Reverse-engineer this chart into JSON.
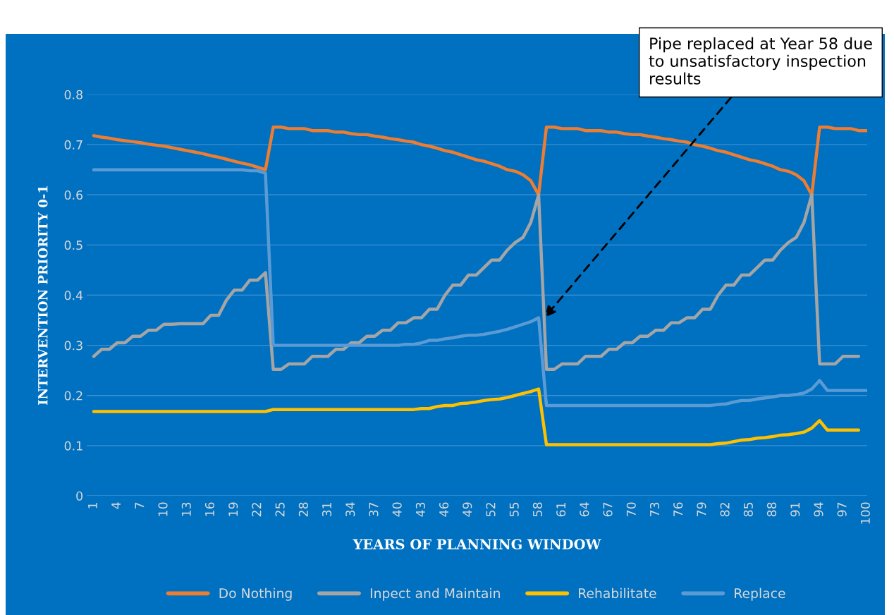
{
  "chart_data": {
    "type": "line",
    "xlabel": "YEARS OF PLANNING WINDOW",
    "ylabel": "INTERVENTION PRIORITY 0-1",
    "categories": [
      "1",
      null,
      null,
      "4",
      null,
      null,
      "7",
      null,
      null,
      "10",
      null,
      null,
      "13",
      null,
      null,
      "16",
      null,
      null,
      "19",
      null,
      null,
      "22",
      null,
      null,
      "25",
      null,
      null,
      "28",
      null,
      null,
      "31",
      null,
      null,
      "34",
      null,
      null,
      "37",
      null,
      null,
      "40",
      null,
      null,
      "43",
      null,
      null,
      "46",
      null,
      null,
      "49",
      null,
      null,
      "52",
      null,
      null,
      "55",
      null,
      null,
      "58",
      null,
      null,
      "61",
      null,
      null,
      "64",
      null,
      null,
      "67",
      null,
      null,
      "70",
      null,
      null,
      "73",
      null,
      null,
      "76",
      null,
      null,
      "79",
      null,
      null,
      "82",
      null,
      null,
      "85",
      null,
      null,
      "88",
      null,
      null,
      "91",
      null,
      null,
      "94",
      null,
      null,
      "97",
      null,
      null,
      "100"
    ],
    "series": [
      {
        "name": "Do Nothing",
        "color": "#ed7d31",
        "values": [
          0.718,
          0.715,
          0.713,
          0.71,
          0.708,
          0.706,
          0.704,
          0.701,
          0.699,
          0.697,
          0.694,
          0.691,
          0.688,
          0.685,
          0.682,
          0.678,
          0.675,
          0.671,
          0.667,
          0.663,
          0.66,
          0.655,
          0.65,
          0.735,
          0.735,
          0.732,
          0.732,
          0.732,
          0.728,
          0.728,
          0.728,
          0.725,
          0.725,
          0.722,
          0.72,
          0.72,
          0.717,
          0.715,
          0.712,
          0.71,
          0.707,
          0.705,
          0.7,
          0.697,
          0.693,
          0.688,
          0.685,
          0.68,
          0.675,
          0.67,
          0.667,
          0.662,
          0.657,
          0.65,
          0.647,
          0.64,
          0.628,
          0.6,
          0.735,
          0.735,
          0.732,
          0.732,
          0.732,
          0.728,
          0.728,
          0.728,
          0.725,
          0.725,
          0.722,
          0.72,
          0.72,
          0.717,
          0.715,
          0.712,
          0.71,
          0.707,
          0.705,
          0.7,
          0.697,
          0.693,
          0.688,
          0.685,
          0.68,
          0.675,
          0.67,
          0.667,
          0.662,
          0.657,
          0.65,
          0.647,
          0.64,
          0.628,
          0.6,
          0.735,
          0.735,
          0.732,
          0.732,
          0.732,
          0.728,
          0.728
        ]
      },
      {
        "name": "Inpect and Maintain",
        "color": "#a5a5a5",
        "values": [
          0.278,
          0.292,
          0.292,
          0.305,
          0.305,
          0.318,
          0.318,
          0.33,
          0.33,
          0.342,
          0.342,
          0.343,
          0.343,
          0.343,
          0.343,
          0.36,
          0.36,
          0.39,
          0.41,
          0.41,
          0.43,
          0.43,
          0.445,
          0.252,
          0.252,
          0.263,
          0.263,
          0.263,
          0.278,
          0.278,
          0.278,
          0.292,
          0.292,
          0.305,
          0.305,
          0.318,
          0.318,
          0.33,
          0.33,
          0.345,
          0.345,
          0.355,
          0.355,
          0.372,
          0.372,
          0.4,
          0.42,
          0.42,
          0.44,
          0.44,
          0.455,
          0.47,
          0.47,
          0.49,
          0.505,
          0.515,
          0.545,
          0.6,
          0.252,
          0.252,
          0.263,
          0.263,
          0.263,
          0.278,
          0.278,
          0.278,
          0.292,
          0.292,
          0.305,
          0.305,
          0.318,
          0.318,
          0.33,
          0.33,
          0.345,
          0.345,
          0.355,
          0.355,
          0.372,
          0.372,
          0.4,
          0.42,
          0.42,
          0.44,
          0.44,
          0.455,
          0.47,
          0.47,
          0.49,
          0.505,
          0.515,
          0.545,
          0.6,
          0.263,
          0.263,
          0.263,
          0.278,
          0.278,
          0.278,
          null
        ]
      },
      {
        "name": "Rehabilitate",
        "color": "#ffc000",
        "values": [
          0.168,
          0.168,
          0.168,
          0.168,
          0.168,
          0.168,
          0.168,
          0.168,
          0.168,
          0.168,
          0.168,
          0.168,
          0.168,
          0.168,
          0.168,
          0.168,
          0.168,
          0.168,
          0.168,
          0.168,
          0.168,
          0.168,
          0.168,
          0.172,
          0.172,
          0.172,
          0.172,
          0.172,
          0.172,
          0.172,
          0.172,
          0.172,
          0.172,
          0.172,
          0.172,
          0.172,
          0.172,
          0.172,
          0.172,
          0.172,
          0.172,
          0.172,
          0.174,
          0.174,
          0.178,
          0.18,
          0.18,
          0.184,
          0.185,
          0.187,
          0.19,
          0.192,
          0.193,
          0.196,
          0.2,
          0.204,
          0.208,
          0.213,
          0.102,
          0.102,
          0.102,
          0.102,
          0.102,
          0.102,
          0.102,
          0.102,
          0.102,
          0.102,
          0.102,
          0.102,
          0.102,
          0.102,
          0.102,
          0.102,
          0.102,
          0.102,
          0.102,
          0.102,
          0.102,
          0.102,
          0.104,
          0.105,
          0.108,
          0.111,
          0.112,
          0.115,
          0.116,
          0.118,
          0.121,
          0.122,
          0.124,
          0.127,
          0.135,
          0.15,
          0.131,
          0.131,
          0.131,
          0.131,
          0.131,
          null
        ]
      },
      {
        "name": "Replace",
        "color": "#5b9bd5",
        "values": [
          0.65,
          0.65,
          0.65,
          0.65,
          0.65,
          0.65,
          0.65,
          0.65,
          0.65,
          0.65,
          0.65,
          0.65,
          0.65,
          0.65,
          0.65,
          0.65,
          0.65,
          0.65,
          0.65,
          0.65,
          0.648,
          0.648,
          0.643,
          0.3,
          0.3,
          0.3,
          0.3,
          0.3,
          0.3,
          0.3,
          0.3,
          0.3,
          0.3,
          0.3,
          0.3,
          0.3,
          0.3,
          0.3,
          0.3,
          0.3,
          0.302,
          0.302,
          0.305,
          0.31,
          0.31,
          0.313,
          0.315,
          0.318,
          0.32,
          0.32,
          0.322,
          0.325,
          0.328,
          0.332,
          0.337,
          0.342,
          0.347,
          0.355,
          0.18,
          0.18,
          0.18,
          0.18,
          0.18,
          0.18,
          0.18,
          0.18,
          0.18,
          0.18,
          0.18,
          0.18,
          0.18,
          0.18,
          0.18,
          0.18,
          0.18,
          0.18,
          0.18,
          0.18,
          0.18,
          0.18,
          0.182,
          0.183,
          0.187,
          0.19,
          0.19,
          0.193,
          0.195,
          0.197,
          0.2,
          0.2,
          0.202,
          0.205,
          0.213,
          0.23,
          0.21,
          0.21,
          0.21,
          0.21,
          0.21,
          0.21
        ]
      }
    ],
    "ylim": [
      0,
      0.8
    ],
    "yticks": [
      0,
      0.1,
      0.2,
      0.3,
      0.4,
      0.5,
      0.6,
      0.7,
      0.8
    ],
    "grid": "y",
    "legend": "bottom",
    "marker": "none",
    "line_style": "solid",
    "annotations": [
      "Pipe replaced at Year 58 due to unsatisfactory inspection results"
    ]
  }
}
